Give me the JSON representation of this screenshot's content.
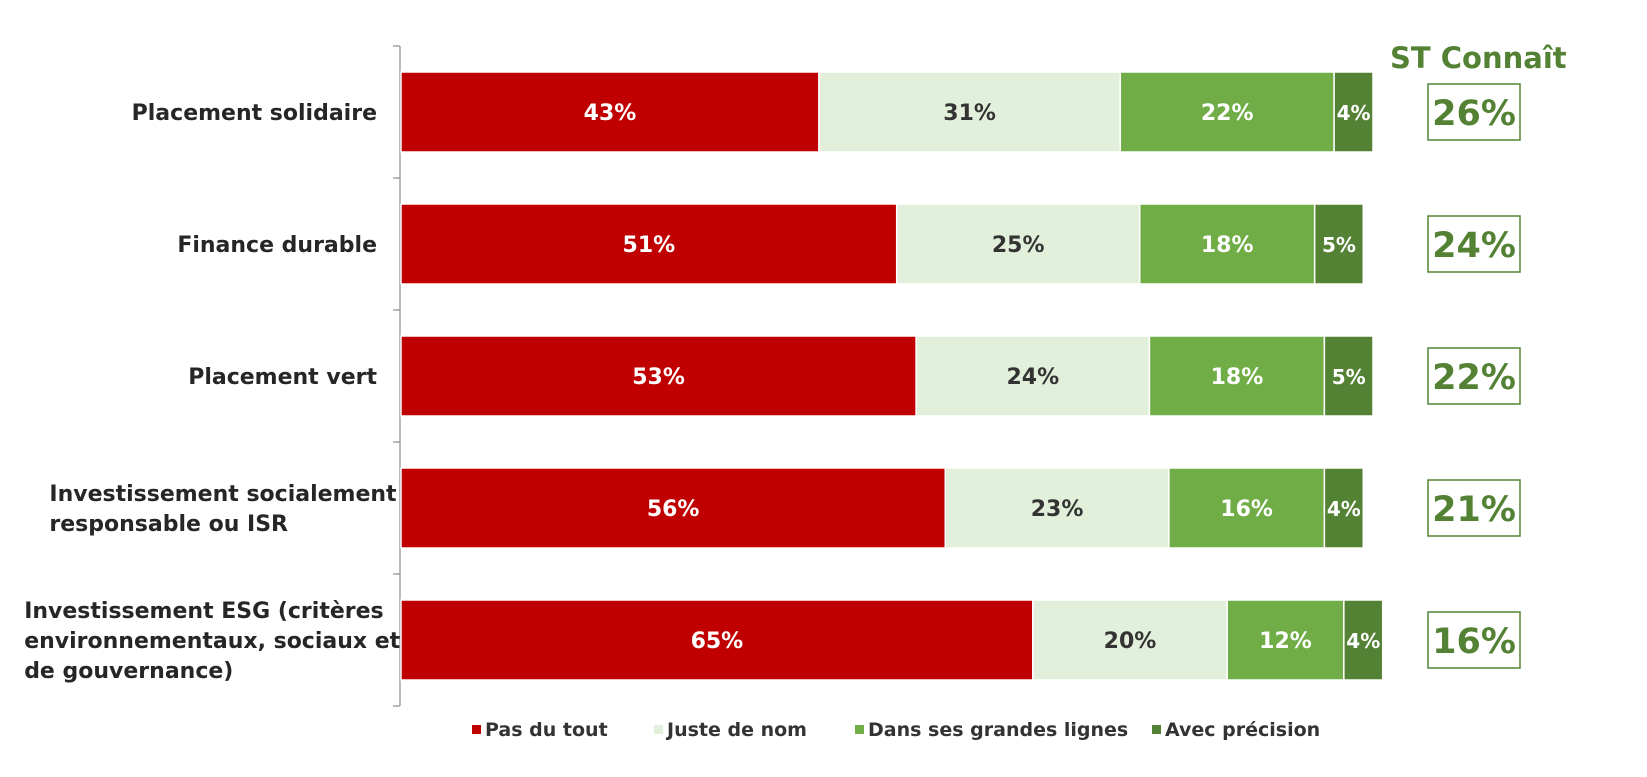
{
  "chart_data": {
    "type": "bar",
    "orientation": "horizontal",
    "stacked": true,
    "categories": [
      "Placement solidaire",
      "Finance durable",
      "Placement vert",
      "Investissement socialement responsable ou ISR",
      "Investissement ESG (critères environnementaux, sociaux et de gouvernance)"
    ],
    "category_lines": [
      [
        "Placement solidaire"
      ],
      [
        "Finance durable"
      ],
      [
        "Placement vert"
      ],
      [
        "Investissement socialement",
        "responsable ou ISR"
      ],
      [
        "Investissement ESG (critères",
        "environnementaux, sociaux et",
        "de gouvernance)"
      ]
    ],
    "series": [
      {
        "name": "Pas du tout",
        "color": "#c00000",
        "label_color": "#ffffff",
        "values": [
          43,
          51,
          53,
          56,
          65
        ],
        "labels": [
          "43%",
          "51%",
          "53%",
          "56%",
          "65%"
        ]
      },
      {
        "name": "Juste de nom",
        "color": "#e2efda",
        "label_color": "#333333",
        "values": [
          31,
          25,
          24,
          23,
          20
        ],
        "labels": [
          "31%",
          "25%",
          "24%",
          "23%",
          "20%"
        ]
      },
      {
        "name": "Dans ses grandes lignes",
        "color": "#70ad47",
        "label_color": "#ffffff",
        "values": [
          22,
          18,
          18,
          16,
          12
        ],
        "labels": [
          "22%",
          "18%",
          "18%",
          "16%",
          "12%"
        ]
      },
      {
        "name": "Avec précision",
        "color": "#548235",
        "label_color": "#ffffff",
        "values": [
          4,
          5,
          5,
          4,
          4
        ],
        "labels": [
          "4%",
          "5%",
          "5%",
          "4%",
          "4%"
        ]
      }
    ],
    "xlim": [
      0,
      100
    ],
    "grid": false,
    "legend_position": "bottom",
    "side_column": {
      "title": "ST Connaît",
      "values": [
        26,
        24,
        22,
        21,
        16
      ],
      "labels": [
        "26%",
        "24%",
        "22%",
        "21%",
        "16%"
      ],
      "color": "#548235"
    }
  }
}
